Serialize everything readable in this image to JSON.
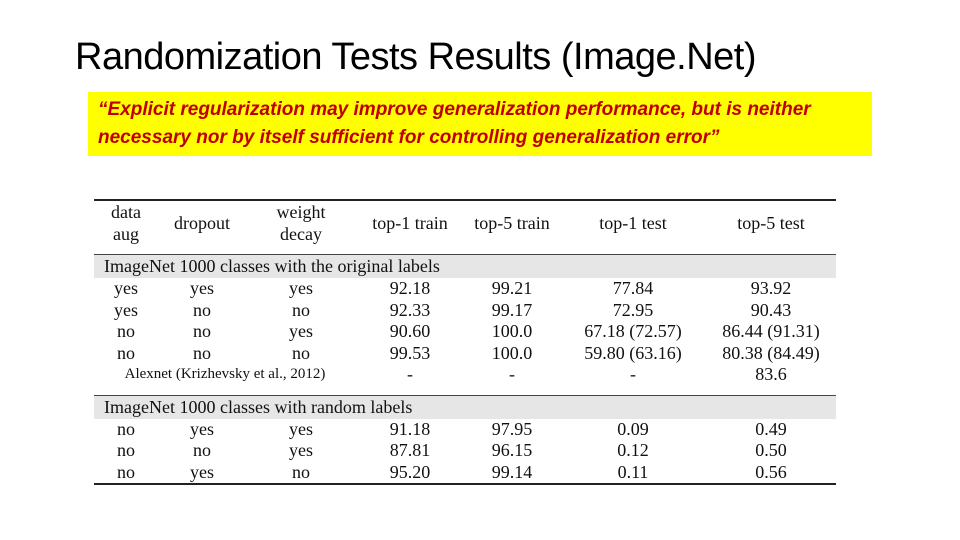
{
  "title": "Randomization Tests Results (Image.Net)",
  "quote": "“Explicit regularization may improve generalization performance, but is neither necessary nor by itself sufficient for controlling generalization error”",
  "table": {
    "headers": [
      {
        "line1": "data",
        "line2": "aug"
      },
      {
        "line1": "dropout",
        "line2": ""
      },
      {
        "line1": "weight",
        "line2": "decay"
      },
      {
        "line1": "top-1 train",
        "line2": ""
      },
      {
        "line1": "top-5 train",
        "line2": ""
      },
      {
        "line1": "top-1 test",
        "line2": ""
      },
      {
        "line1": "top-5 test",
        "line2": ""
      }
    ],
    "sections": [
      {
        "title": "ImageNet 1000 classes with the original labels",
        "rows": [
          [
            "yes",
            "yes",
            "yes",
            "92.18",
            "99.21",
            "77.84",
            "93.92"
          ],
          [
            "yes",
            "no",
            "no",
            "92.33",
            "99.17",
            "72.95",
            "90.43"
          ],
          [
            "no",
            "no",
            "yes",
            "90.60",
            "100.0",
            "67.18 (72.57)",
            "86.44 (91.31)"
          ],
          [
            "no",
            "no",
            "no",
            "99.53",
            "100.0",
            "59.80 (63.16)",
            "80.38 (84.49)"
          ]
        ],
        "extra": [
          "Alexnet (Krizhevsky et al., 2012)",
          "-",
          "-",
          "-",
          "83.6"
        ]
      },
      {
        "title": "ImageNet 1000 classes with random labels",
        "rows": [
          [
            "no",
            "yes",
            "yes",
            "91.18",
            "97.95",
            "0.09",
            "0.49"
          ],
          [
            "no",
            "no",
            "yes",
            "87.81",
            "96.15",
            "0.12",
            "0.50"
          ],
          [
            "no",
            "yes",
            "no",
            "95.20",
            "99.14",
            "0.11",
            "0.56"
          ]
        ]
      }
    ]
  }
}
